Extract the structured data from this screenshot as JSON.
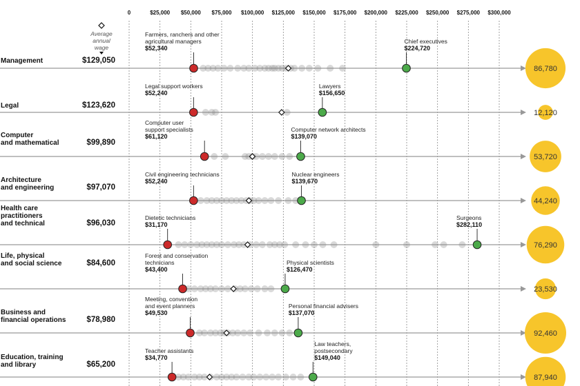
{
  "chart_data": {
    "type": "scatter",
    "x_ticks": [
      "0",
      "$25,000",
      "$50,000",
      "$75,000",
      "$100,000",
      "$125,000",
      "$150,000",
      "$175,000",
      "$200,000",
      "$225,000",
      "$250,000",
      "$275,000",
      "$300,000"
    ],
    "x_tick_values": [
      0,
      25000,
      50000,
      75000,
      100000,
      125000,
      150000,
      175000,
      200000,
      225000,
      250000,
      275000,
      300000
    ],
    "xlim": [
      0,
      300000
    ],
    "average_header": [
      "Average",
      "annual",
      "wage"
    ],
    "groups": [
      {
        "name": [
          "Management"
        ],
        "average_label": "$129,050",
        "average": 129050,
        "employment": "86,780",
        "employment_value": 86780,
        "low": {
          "name": [
            "Farmers, ranchers and other",
            "agricultural managers"
          ],
          "value_label": "$52,340",
          "value": 52340
        },
        "high": {
          "name": [
            "Chief executives"
          ],
          "value_label": "$224,720",
          "value": 224720
        },
        "points": [
          60000,
          64000,
          68000,
          72000,
          77000,
          82000,
          88000,
          93000,
          97000,
          102000,
          106000,
          110000,
          113000,
          116000,
          118000,
          121000,
          124000,
          127000,
          131000,
          134000,
          140000,
          146000,
          153000,
          163000,
          173000
        ]
      },
      {
        "name": [
          "Legal"
        ],
        "average_label": "$123,620",
        "average": 123620,
        "employment": "12,120",
        "employment_value": 12120,
        "low": {
          "name": [
            "Legal support workers"
          ],
          "value_label": "$52,240",
          "value": 52240
        },
        "high": {
          "name": [
            "Lawyers"
          ],
          "value_label": "$156,650",
          "value": 156650
        },
        "points": [
          62000,
          67000,
          70000,
          128000
        ]
      },
      {
        "name": [
          "Computer",
          "and mathematical"
        ],
        "average_label": "$99,890",
        "average": 99890,
        "employment": "53,720",
        "employment_value": 53720,
        "low": {
          "name": [
            "Computer user",
            "support specialists"
          ],
          "value_label": "$61,120",
          "value": 61120
        },
        "high": {
          "name": [
            "Computer network architects"
          ],
          "value_label": "$139,070",
          "value": 139070
        },
        "points": [
          69000,
          78000,
          94000,
          97000,
          100000,
          103000,
          108000,
          113000,
          118000,
          124000,
          130000
        ]
      },
      {
        "name": [
          "Architecture",
          "and engineering"
        ],
        "average_label": "$97,070",
        "average": 97070,
        "employment": "44,240",
        "employment_value": 44240,
        "low": {
          "name": [
            "Civil engineering technicians"
          ],
          "value_label": "$52,240",
          "value": 52240
        },
        "high": {
          "name": [
            "Nuclear engineers"
          ],
          "value_label": "$139,670",
          "value": 139670
        },
        "points": [
          58000,
          63000,
          67000,
          71000,
          75000,
          79000,
          83000,
          87000,
          91000,
          95000,
          98000,
          101000,
          105000,
          110000,
          115000,
          121000,
          129000,
          135000
        ]
      },
      {
        "name": [
          "Health care",
          "practitioners",
          "and technical"
        ],
        "average_label": "$96,030",
        "average": 96030,
        "employment": "76,290",
        "employment_value": 76290,
        "low": {
          "name": [
            "Dietetic technicians"
          ],
          "value_label": "$31,170",
          "value": 31170
        },
        "high": {
          "name": [
            "Surgeons"
          ],
          "value_label": "$282,110",
          "value": 282110
        },
        "points": [
          40000,
          45000,
          50000,
          55000,
          59000,
          63000,
          67000,
          71000,
          75000,
          80000,
          85000,
          89000,
          93000,
          98000,
          103000,
          108000,
          114000,
          118000,
          122000,
          126000,
          135000,
          143000,
          150000,
          157000,
          166000,
          200000,
          225000,
          248000,
          255000,
          270000
        ]
      },
      {
        "name": [
          "Life, physical",
          "and social science"
        ],
        "average_label": "$84,600",
        "average": 84600,
        "employment": "23,530",
        "employment_value": 23530,
        "low": {
          "name": [
            "Forest and conservation",
            "technicians"
          ],
          "value_label": "$43,400",
          "value": 43400
        },
        "high": {
          "name": [
            "Physical scientists"
          ],
          "value_label": "$126,470",
          "value": 126470
        },
        "points": [
          48000,
          53000,
          58000,
          62000,
          66000,
          70000,
          75000,
          80000,
          86000,
          90000,
          94000,
          99000,
          104000,
          110000,
          115000
        ]
      },
      {
        "name": [
          "Business and",
          "financial operations"
        ],
        "average_label": "$78,980",
        "average": 78980,
        "employment": "92,460",
        "employment_value": 92460,
        "low": {
          "name": [
            "Meeting, convention",
            "and event planners"
          ],
          "value_label": "$49,530",
          "value": 49530
        },
        "high": {
          "name": [
            "Personal financial advisers"
          ],
          "value_label": "$137,070",
          "value": 137070
        },
        "points": [
          57000,
          61000,
          66000,
          70000,
          74000,
          77000,
          80000,
          84000,
          88000,
          93000,
          98000,
          105000,
          112000,
          118000,
          124000,
          130000
        ]
      },
      {
        "name": [
          "Education, training",
          "and library"
        ],
        "average_label": "$65,200",
        "average": 65200,
        "employment": "87,940",
        "employment_value": 87940,
        "low": {
          "name": [
            "Teacher assistants"
          ],
          "value_label": "$34,770",
          "value": 34770
        },
        "high": {
          "name": [
            "Law teachers,",
            "postsecondary"
          ],
          "value_label": "$149,040",
          "value": 149040
        },
        "points": [
          40000,
          44000,
          48000,
          53000,
          57000,
          61000,
          66000,
          71000,
          75000,
          79000,
          83000,
          87000,
          92000,
          97000,
          101000,
          106000,
          111000,
          116000,
          121000,
          127000,
          133000,
          139000
        ]
      }
    ]
  },
  "colors": {
    "low": "#cc2a2a",
    "high": "#4caa4a",
    "dot": "#888888",
    "bubble": "#f7c52b",
    "axis": "#999999",
    "grid": "#888888"
  }
}
